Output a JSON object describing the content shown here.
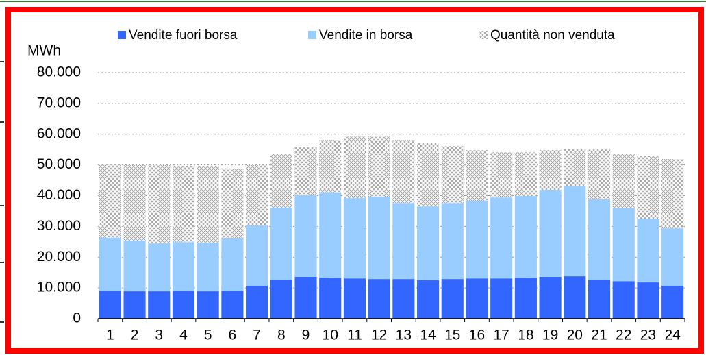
{
  "chart_data": {
    "type": "stacked-bar",
    "y_label": "MWh",
    "categories": [
      "1",
      "2",
      "3",
      "4",
      "5",
      "6",
      "7",
      "8",
      "9",
      "10",
      "11",
      "12",
      "13",
      "14",
      "15",
      "16",
      "17",
      "18",
      "19",
      "20",
      "21",
      "22",
      "23",
      "24"
    ],
    "series": [
      {
        "name": "Vendite fuori borsa",
        "color": "#3366ff",
        "values": [
          9100,
          8900,
          8900,
          9100,
          8900,
          9100,
          10700,
          12700,
          13600,
          13400,
          13100,
          12900,
          12900,
          12500,
          12900,
          13100,
          13100,
          13400,
          13600,
          13800,
          12700,
          12200,
          11800,
          10700
        ]
      },
      {
        "name": "Vendite in borsa",
        "color": "#99ccff",
        "values": [
          17200,
          16500,
          15600,
          15800,
          15800,
          17000,
          19600,
          23400,
          26500,
          27600,
          26100,
          26700,
          24700,
          24000,
          24700,
          25200,
          26300,
          26500,
          28300,
          29200,
          26100,
          23700,
          20700,
          18700
        ]
      },
      {
        "name": "Quantità non venduta",
        "color": "#a6a6a6",
        "hatch": true,
        "values": [
          23800,
          24500,
          25400,
          24800,
          25000,
          22700,
          19600,
          17600,
          15800,
          16900,
          20000,
          19600,
          20300,
          20700,
          18500,
          16500,
          14700,
          14200,
          12900,
          12200,
          16200,
          17800,
          20500,
          22500
        ]
      }
    ],
    "ylim": [
      0,
      80000
    ],
    "yticks": [
      0,
      {
        "value": 10000,
        "label": "10.000"
      },
      {
        "value": 20000,
        "label": "20.000"
      },
      {
        "value": 30000,
        "label": "30.000"
      },
      {
        "value": 40000,
        "label": "40.000"
      },
      {
        "value": 50000,
        "label": "50.000"
      },
      {
        "value": 60000,
        "label": "60.000"
      },
      {
        "value": 70000,
        "label": "70.000"
      },
      {
        "value": 80000,
        "label": "80.000"
      }
    ],
    "grid": true,
    "legend": "top"
  }
}
